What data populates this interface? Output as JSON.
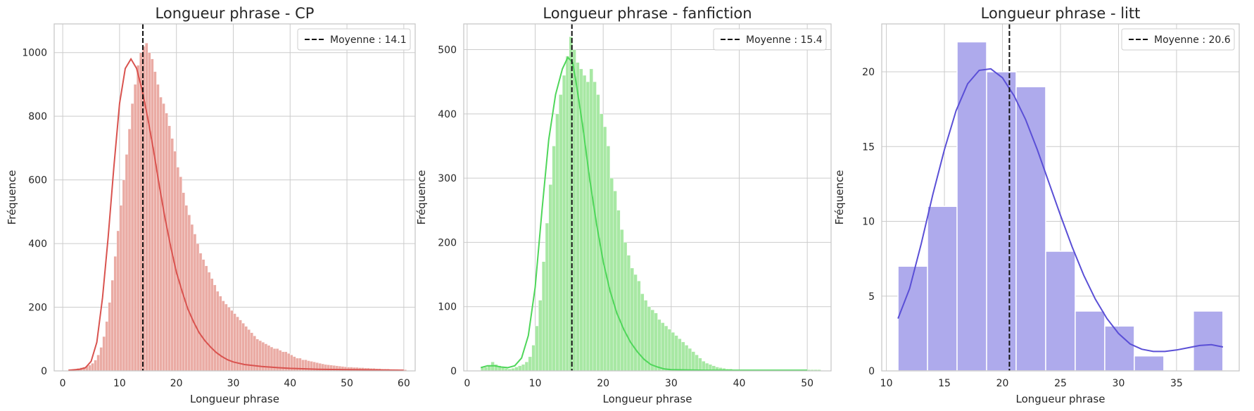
{
  "chart_data": [
    {
      "type": "histogram",
      "title": "Longueur phrase - CP",
      "xlabel": "Longueur phrase",
      "ylabel": "Fréquence",
      "xlim": [
        -1.5,
        62
      ],
      "ylim": [
        0,
        1090
      ],
      "xticks": [
        0,
        10,
        20,
        30,
        40,
        50,
        60
      ],
      "yticks": [
        0,
        200,
        400,
        600,
        800,
        1000
      ],
      "grid": true,
      "legend_position": "top-right",
      "mean": {
        "label": "Moyenne : 14.1",
        "value": 14.1
      },
      "bar_color": "#eaaba4",
      "kde_color": "#d9534f",
      "bin_width": 0.5,
      "x_start": 1,
      "values": [
        2,
        4,
        6,
        8,
        10,
        12,
        15,
        18,
        24,
        34,
        50,
        74,
        108,
        155,
        215,
        285,
        360,
        440,
        520,
        600,
        680,
        760,
        840,
        900,
        960,
        1000,
        1020,
        1030,
        1000,
        980,
        940,
        900,
        860,
        840,
        810,
        770,
        730,
        690,
        640,
        610,
        560,
        520,
        490,
        460,
        430,
        400,
        370,
        350,
        330,
        310,
        290,
        270,
        250,
        235,
        220,
        210,
        200,
        190,
        180,
        170,
        160,
        150,
        140,
        130,
        120,
        110,
        100,
        95,
        90,
        85,
        80,
        75,
        70,
        70,
        65,
        60,
        60,
        55,
        50,
        45,
        40,
        40,
        35,
        35,
        32,
        30,
        28,
        26,
        24,
        22,
        20,
        19,
        18,
        17,
        16,
        15,
        14,
        13,
        12,
        12,
        11,
        11,
        10,
        10,
        9,
        9,
        8,
        8,
        7,
        7,
        6,
        6,
        6,
        5,
        5,
        5,
        4,
        4,
        4
      ],
      "kde": [
        [
          1,
          2
        ],
        [
          3,
          5
        ],
        [
          4,
          10
        ],
        [
          5,
          30
        ],
        [
          6,
          90
        ],
        [
          7,
          230
        ],
        [
          8,
          420
        ],
        [
          9,
          640
        ],
        [
          10,
          840
        ],
        [
          11,
          950
        ],
        [
          12,
          980
        ],
        [
          13,
          950
        ],
        [
          14,
          880
        ],
        [
          15,
          790
        ],
        [
          16,
          690
        ],
        [
          17,
          580
        ],
        [
          18,
          480
        ],
        [
          19,
          390
        ],
        [
          20,
          310
        ],
        [
          21,
          250
        ],
        [
          22,
          195
        ],
        [
          23,
          155
        ],
        [
          24,
          120
        ],
        [
          25,
          95
        ],
        [
          26,
          75
        ],
        [
          27,
          58
        ],
        [
          28,
          45
        ],
        [
          29,
          35
        ],
        [
          30,
          28
        ],
        [
          32,
          20
        ],
        [
          35,
          14
        ],
        [
          38,
          10
        ],
        [
          40,
          8
        ],
        [
          45,
          5
        ],
        [
          50,
          4
        ],
        [
          55,
          3
        ],
        [
          60,
          2
        ]
      ]
    },
    {
      "type": "histogram",
      "title": "Longueur phrase - fanfiction",
      "xlabel": "Longueur phrase",
      "ylabel": "Fréquence",
      "xlim": [
        -0.5,
        53.5
      ],
      "ylim": [
        0,
        540
      ],
      "xticks": [
        0,
        10,
        20,
        30,
        40,
        50
      ],
      "yticks": [
        0,
        100,
        200,
        300,
        400,
        500
      ],
      "grid": true,
      "legend_position": "top-right",
      "mean": {
        "label": "Moyenne : 15.4",
        "value": 15.4
      },
      "bar_color": "#a8e8a4",
      "kde_color": "#4fd65a",
      "bin_width": 0.5,
      "x_start": 2,
      "values": [
        5,
        6,
        8,
        14,
        10,
        8,
        5,
        4,
        3,
        4,
        6,
        8,
        10,
        14,
        22,
        40,
        70,
        110,
        170,
        230,
        290,
        350,
        400,
        430,
        460,
        490,
        520,
        500,
        480,
        470,
        460,
        450,
        470,
        450,
        430,
        400,
        380,
        350,
        300,
        280,
        250,
        220,
        200,
        180,
        160,
        150,
        140,
        120,
        110,
        100,
        95,
        90,
        80,
        75,
        70,
        65,
        60,
        55,
        50,
        45,
        40,
        35,
        30,
        25,
        20,
        15,
        12,
        10,
        8,
        6,
        5,
        4,
        3,
        3,
        2,
        2,
        2,
        2,
        2,
        2,
        2,
        2,
        2,
        2,
        2,
        2,
        2,
        2,
        2,
        2,
        2,
        2,
        2,
        2,
        2,
        2,
        2,
        2,
        2,
        2
      ],
      "kde": [
        [
          2,
          5
        ],
        [
          3,
          8
        ],
        [
          4,
          8
        ],
        [
          5,
          6
        ],
        [
          6,
          5
        ],
        [
          7,
          8
        ],
        [
          8,
          20
        ],
        [
          9,
          55
        ],
        [
          10,
          130
        ],
        [
          11,
          250
        ],
        [
          12,
          360
        ],
        [
          13,
          430
        ],
        [
          14,
          470
        ],
        [
          14.8,
          488
        ],
        [
          15.5,
          480
        ],
        [
          16,
          450
        ],
        [
          17,
          380
        ],
        [
          18,
          300
        ],
        [
          19,
          230
        ],
        [
          20,
          170
        ],
        [
          21,
          125
        ],
        [
          22,
          90
        ],
        [
          23,
          65
        ],
        [
          24,
          45
        ],
        [
          25,
          30
        ],
        [
          26,
          18
        ],
        [
          27,
          10
        ],
        [
          28,
          6
        ],
        [
          29,
          3
        ],
        [
          30,
          2
        ],
        [
          35,
          1
        ],
        [
          40,
          1
        ],
        [
          45,
          1
        ],
        [
          50,
          1
        ]
      ]
    },
    {
      "type": "histogram",
      "title": "Longueur phrase - litt",
      "xlabel": "Longueur phrase",
      "ylabel": "Fréquence",
      "xlim": [
        9.6,
        40.4
      ],
      "ylim": [
        0,
        23.2
      ],
      "xticks": [
        10,
        15,
        20,
        25,
        30,
        35
      ],
      "yticks": [
        0,
        5,
        10,
        15,
        20
      ],
      "grid": true,
      "legend_position": "top-right",
      "mean": {
        "label": "Moyenne : 20.6",
        "value": 20.6
      },
      "bar_color": "#aeaaec",
      "kde_color": "#5a4fd6",
      "bin_width": 2.545,
      "x_start": 11,
      "values": [
        7,
        11,
        22,
        20,
        19,
        8,
        4,
        3,
        1,
        0,
        4
      ],
      "kde": [
        [
          11,
          3.5
        ],
        [
          12,
          5.5
        ],
        [
          13,
          8.5
        ],
        [
          14,
          11.8
        ],
        [
          15,
          14.8
        ],
        [
          16,
          17.4
        ],
        [
          17,
          19.2
        ],
        [
          18,
          20.1
        ],
        [
          19,
          20.2
        ],
        [
          20,
          19.6
        ],
        [
          21,
          18.4
        ],
        [
          22,
          16.8
        ],
        [
          23,
          14.8
        ],
        [
          24,
          12.6
        ],
        [
          25,
          10.4
        ],
        [
          26,
          8.3
        ],
        [
          27,
          6.4
        ],
        [
          28,
          4.8
        ],
        [
          29,
          3.5
        ],
        [
          30,
          2.5
        ],
        [
          31,
          1.8
        ],
        [
          32,
          1.45
        ],
        [
          33,
          1.3
        ],
        [
          34,
          1.3
        ],
        [
          35,
          1.4
        ],
        [
          36,
          1.55
        ],
        [
          37,
          1.7
        ],
        [
          38,
          1.75
        ],
        [
          39,
          1.6
        ]
      ]
    }
  ]
}
